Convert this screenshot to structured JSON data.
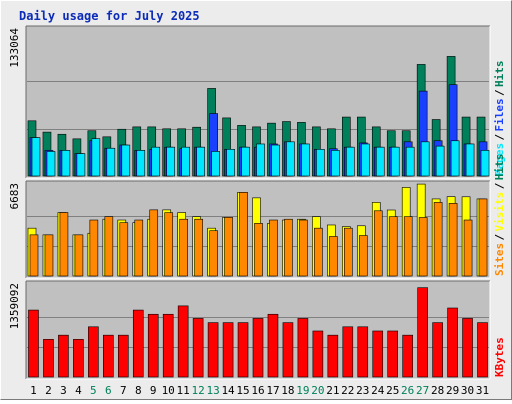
{
  "title": "Daily usage for July 2025",
  "colors": {
    "pages": "#00e8ff",
    "files": "#1a40ff",
    "hits": "#00805a",
    "sites": "#ff8800",
    "visits": "#ffff00",
    "kbytes": "#ff0000",
    "panel_bg": "#c0c0c0",
    "weekend_day": "#00805a",
    "weekday_day": "#000000"
  },
  "chart_data": [
    {
      "type": "bar",
      "ymax_label": "133064",
      "ymax": 133064,
      "legend": [
        "Pages",
        "Files",
        "Hits"
      ],
      "categories": [
        "1",
        "2",
        "3",
        "4",
        "5",
        "6",
        "7",
        "8",
        "9",
        "10",
        "11",
        "12",
        "13",
        "14",
        "15",
        "16",
        "17",
        "18",
        "19",
        "20",
        "21",
        "22",
        "23",
        "24",
        "25",
        "26",
        "27",
        "28",
        "29",
        "30",
        "31"
      ],
      "series": [
        {
          "name": "Hits",
          "values": [
            51700,
            41100,
            39100,
            34800,
            42400,
            36700,
            43800,
            46000,
            46000,
            44200,
            44200,
            45700,
            82000,
            54400,
            47400,
            46000,
            49500,
            51000,
            50200,
            46000,
            44200,
            55200,
            55200,
            46000,
            42400,
            42400,
            104500,
            52900,
            112000,
            55200,
            55200
          ]
        },
        {
          "name": "Files",
          "values": [
            36000,
            24000,
            24000,
            21000,
            33000,
            26000,
            29000,
            24000,
            25000,
            27000,
            25500,
            27000,
            58500,
            25000,
            27000,
            27000,
            30000,
            32000,
            30000,
            25000,
            25500,
            27000,
            31000,
            27000,
            27000,
            32000,
            79500,
            33000,
            85500,
            30000,
            32000
          ]
        },
        {
          "name": "Pages",
          "values": [
            36000,
            23000,
            24000,
            21000,
            35000,
            26000,
            29000,
            24000,
            27000,
            27000,
            27000,
            27000,
            23000,
            25000,
            27000,
            30000,
            29000,
            32000,
            30000,
            25000,
            24000,
            27000,
            30000,
            27000,
            27000,
            27000,
            32000,
            28000,
            33000,
            30000,
            24000
          ]
        }
      ]
    },
    {
      "type": "bar",
      "ymax_label": "6683",
      "ymax": 6683,
      "legend": [
        "Sites",
        "Visits",
        "Hits"
      ],
      "categories": [
        "1",
        "2",
        "3",
        "4",
        "5",
        "6",
        "7",
        "8",
        "9",
        "10",
        "11",
        "12",
        "13",
        "14",
        "15",
        "16",
        "17",
        "18",
        "19",
        "20",
        "21",
        "22",
        "23",
        "24",
        "25",
        "26",
        "27",
        "28",
        "29",
        "30",
        "31"
      ],
      "series": [
        {
          "name": "Visits",
          "values": [
            3580,
            3080,
            4750,
            3080,
            3200,
            4250,
            4190,
            3990,
            4250,
            4950,
            4750,
            4440,
            3580,
            4390,
            6260,
            5850,
            3940,
            4190,
            4250,
            4440,
            3820,
            3700,
            3760,
            5510,
            4940,
            6630,
            6880,
            5770,
            5940,
            5930,
            5770
          ]
        },
        {
          "name": "Sites",
          "values": [
            3080,
            3080,
            4750,
            3080,
            4190,
            4440,
            3990,
            4190,
            4950,
            4740,
            4250,
            4250,
            3390,
            4390,
            6260,
            3940,
            4190,
            4250,
            4190,
            3580,
            2960,
            3580,
            3030,
            4880,
            4440,
            4440,
            4380,
            5510,
            5440,
            4190,
            5770
          ]
        }
      ]
    },
    {
      "type": "bar",
      "ymax_label": "1359092",
      "ymax": 1359092,
      "legend": [
        "KBytes"
      ],
      "categories": [
        "1",
        "2",
        "3",
        "4",
        "5",
        "6",
        "7",
        "8",
        "9",
        "10",
        "11",
        "12",
        "13",
        "14",
        "15",
        "16",
        "17",
        "18",
        "19",
        "20",
        "21",
        "22",
        "23",
        "24",
        "25",
        "26",
        "27",
        "28",
        "29",
        "30",
        "31"
      ],
      "series": [
        {
          "name": "KBytes",
          "values": [
            1008000,
            567000,
            630000,
            567000,
            756000,
            630000,
            630000,
            1008000,
            945000,
            945000,
            1071000,
            882000,
            819000,
            819000,
            819000,
            882000,
            945000,
            819000,
            882000,
            693000,
            630000,
            756000,
            756000,
            693000,
            693000,
            630000,
            1345000,
            819000,
            1039000,
            882000,
            819000
          ]
        }
      ]
    }
  ],
  "weekend_days": [
    "5",
    "6",
    "12",
    "13",
    "19",
    "20",
    "26",
    "27"
  ]
}
